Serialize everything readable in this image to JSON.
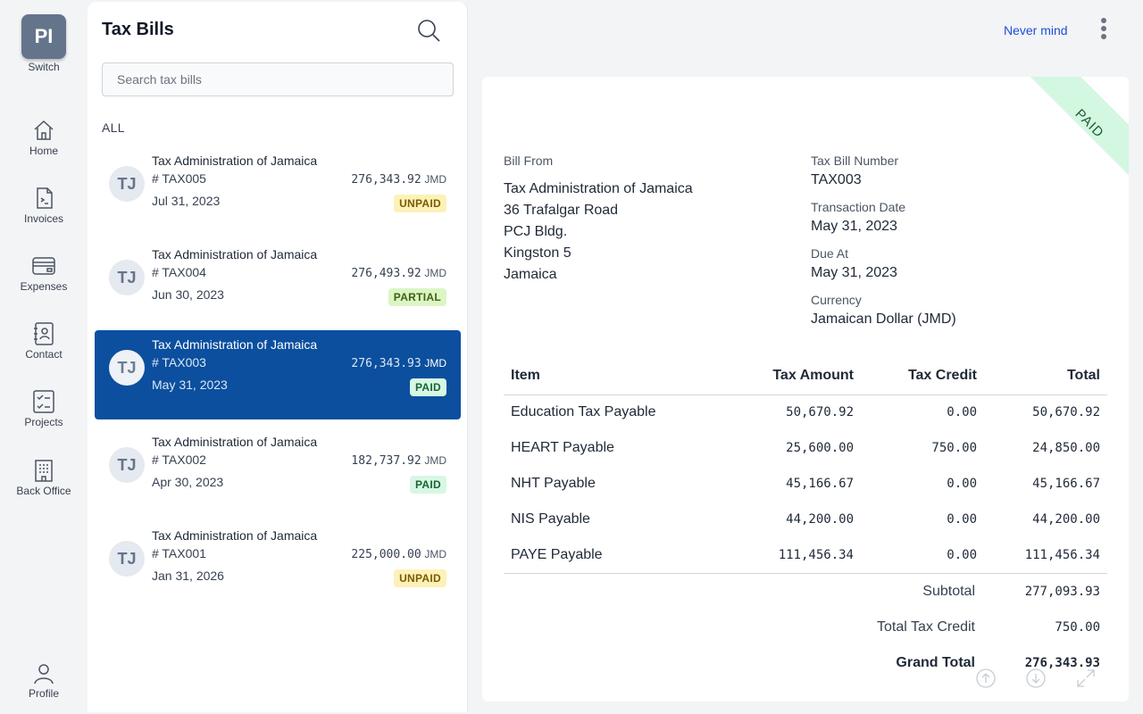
{
  "rail": {
    "switch_initials": "PI",
    "switch_label": "Switch",
    "items": [
      {
        "label": "Home",
        "icon": "home-icon"
      },
      {
        "label": "Invoices",
        "icon": "invoice-icon"
      },
      {
        "label": "Expenses",
        "icon": "credit-card-icon"
      },
      {
        "label": "Contact",
        "icon": "contact-book-icon"
      },
      {
        "label": "Projects",
        "icon": "checklist-icon"
      },
      {
        "label": "Back Office",
        "icon": "building-icon"
      }
    ],
    "profile_label": "Profile"
  },
  "list": {
    "title": "Tax Bills",
    "search_placeholder": "Search tax bills",
    "filter": "ALL",
    "bills": [
      {
        "initials": "TJ",
        "vendor": "Tax Administration of Jamaica",
        "number": "# TAX005",
        "amount": "276,343.92",
        "currency": "JMD",
        "date": "Jul 31, 2023",
        "status": "UNPAID"
      },
      {
        "initials": "TJ",
        "vendor": "Tax Administration of Jamaica",
        "number": "# TAX004",
        "amount": "276,493.92",
        "currency": "JMD",
        "date": "Jun 30, 2023",
        "status": "PARTIAL"
      },
      {
        "initials": "TJ",
        "vendor": "Tax Administration of Jamaica",
        "number": "# TAX003",
        "amount": "276,343.93",
        "currency": "JMD",
        "date": "May 31, 2023",
        "status": "PAID"
      },
      {
        "initials": "TJ",
        "vendor": "Tax Administration of Jamaica",
        "number": "# TAX002",
        "amount": "182,737.92",
        "currency": "JMD",
        "date": "Apr 30, 2023",
        "status": "PAID"
      },
      {
        "initials": "TJ",
        "vendor": "Tax Administration of Jamaica",
        "number": "# TAX001",
        "amount": "225,000.00",
        "currency": "JMD",
        "date": "Jan 31, 2026",
        "status": "UNPAID"
      }
    ]
  },
  "header": {
    "cancel_label": "Never mind"
  },
  "detail": {
    "status_ribbon": "PAID",
    "bill_from_label": "Bill From",
    "address": [
      "Tax Administration of Jamaica",
      "36 Trafalgar Road",
      "PCJ Bldg.",
      "Kingston 5",
      "Jamaica"
    ],
    "meta": [
      {
        "label": "Tax Bill Number",
        "value": "TAX003"
      },
      {
        "label": "Transaction Date",
        "value": "May 31, 2023"
      },
      {
        "label": "Due At",
        "value": "May 31, 2023"
      },
      {
        "label": "Currency",
        "value": "Jamaican Dollar (JMD)"
      }
    ],
    "columns": [
      "Item",
      "Tax Amount",
      "Tax Credit",
      "Total"
    ],
    "rows": [
      {
        "item": "Education Tax Payable",
        "tax_amount": "50,670.92",
        "tax_credit": "0.00",
        "total": "50,670.92"
      },
      {
        "item": "HEART Payable",
        "tax_amount": "25,600.00",
        "tax_credit": "750.00",
        "total": "24,850.00"
      },
      {
        "item": "NHT Payable",
        "tax_amount": "45,166.67",
        "tax_credit": "0.00",
        "total": "45,166.67"
      },
      {
        "item": "NIS Payable",
        "tax_amount": "44,200.00",
        "tax_credit": "0.00",
        "total": "44,200.00"
      },
      {
        "item": "PAYE Payable",
        "tax_amount": "111,456.34",
        "tax_credit": "0.00",
        "total": "111,456.34"
      }
    ],
    "subtotal_label": "Subtotal",
    "subtotal": "277,093.93",
    "credit_label": "Total Tax Credit",
    "credit": "750.00",
    "grand_label": "Grand Total",
    "grand": "276,343.93"
  },
  "colors": {
    "accent": "#0b4f9e",
    "link": "#1d4ed8",
    "unpaid_bg": "#fdf1b8",
    "partial_bg": "#dcf5c4",
    "paid_bg": "#d7f7e4"
  }
}
